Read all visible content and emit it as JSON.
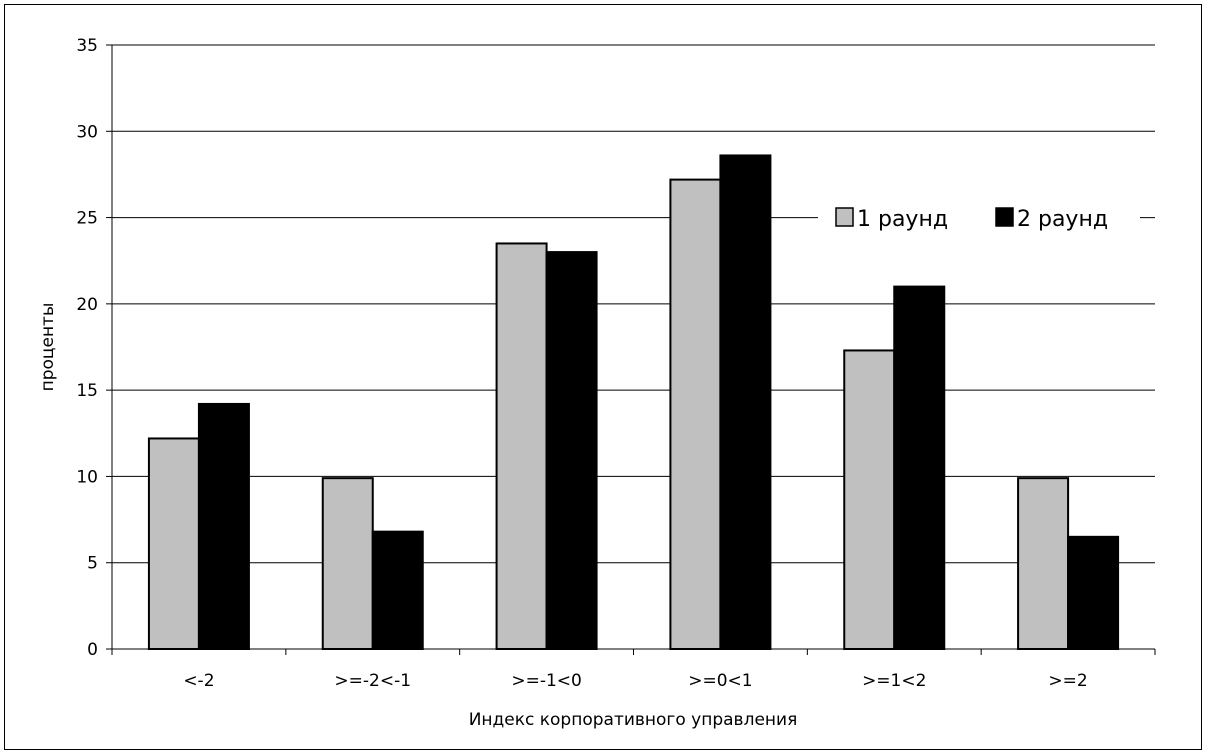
{
  "chart_data": {
    "type": "bar",
    "title": "",
    "xlabel": "Индекс корпоративного управления",
    "ylabel": "проценты",
    "ylim": [
      0,
      35
    ],
    "yticks": [
      0,
      5,
      10,
      15,
      20,
      25,
      30,
      35
    ],
    "grid": true,
    "legend_position": "top-right",
    "categories": [
      "<-2",
      ">=-2<-1",
      ">=-1<0",
      ">=0<1",
      ">=1<2",
      ">=2"
    ],
    "series": [
      {
        "name": "1 раунд",
        "color": "#c0c0c0",
        "values": [
          12.2,
          9.9,
          23.5,
          27.2,
          17.3,
          9.9
        ]
      },
      {
        "name": "2 раунд",
        "color": "#000000",
        "values": [
          14.2,
          6.8,
          23.0,
          28.6,
          21.0,
          6.5
        ]
      }
    ]
  }
}
